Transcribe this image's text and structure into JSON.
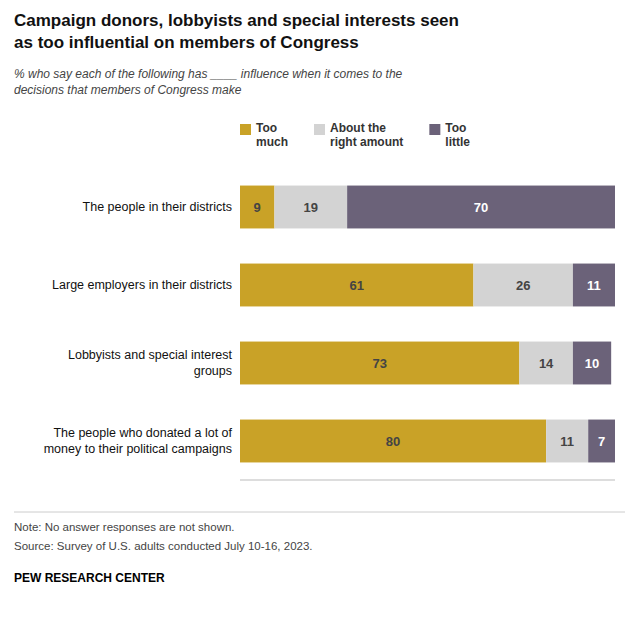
{
  "chart_data": {
    "type": "bar",
    "orientation": "horizontal",
    "stacked": true,
    "data_labels": true,
    "tick_labels": "y",
    "grid": false,
    "legend": "top",
    "title": "Campaign donors, lobbyists and special interests seen\nas too influential on members of Congress",
    "subtitle": "% who say each of the following has ____ influence when it comes to the\ndecisions that members of Congress make",
    "annotations": [
      "Note: No answer responses are not shown.",
      "Source: Survey of U.S. adults conducted July 10-16, 2023.",
      "PEW RESEARCH CENTER"
    ],
    "categories": [
      "The people in their districts",
      "Large employers in their districts",
      "Lobbyists and special interest\ngroups",
      "The people who donated a lot of\nmoney to their political campaigns"
    ],
    "series": [
      {
        "name": "Too\nmuch",
        "color": "#C9A227",
        "values": [
          9,
          61,
          73,
          80
        ]
      },
      {
        "name": "About the\nright amount",
        "color": "#D3D3D3",
        "values": [
          19,
          26,
          14,
          11
        ]
      },
      {
        "name": "Too\nlittle",
        "color": "#6B6279",
        "values": [
          70,
          11,
          10,
          7
        ]
      }
    ],
    "xlim": [
      0,
      98
    ]
  }
}
